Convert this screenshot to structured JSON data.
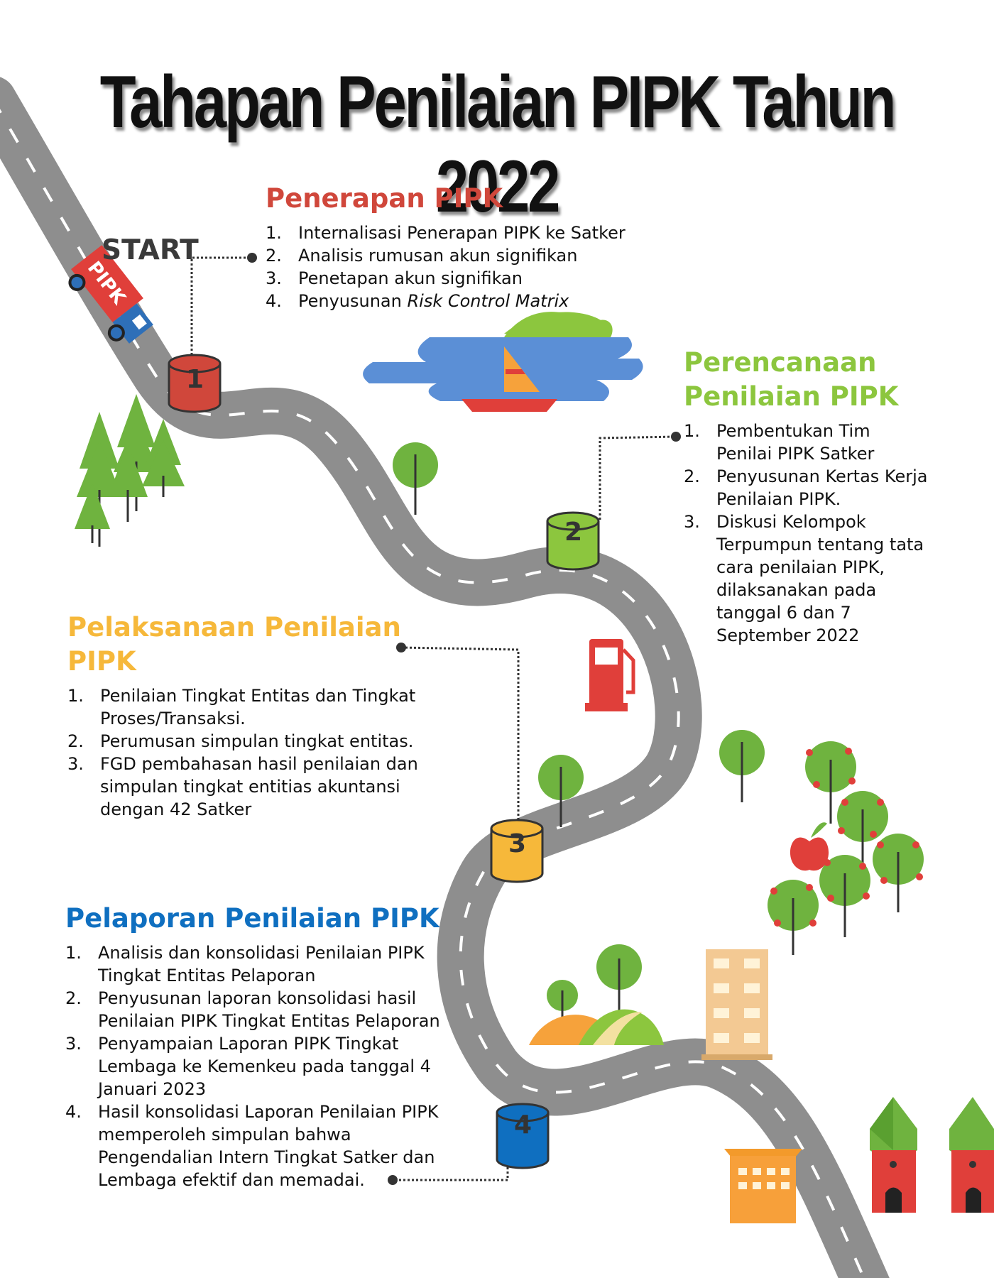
{
  "title": "Tahapan Penilaian PIPK Tahun 2022",
  "start_label": "START",
  "truck_label": "PIPK",
  "colors": {
    "stage1": "#d0473b",
    "stage2": "#8cc63e",
    "stage3": "#f6b83a",
    "stage4": "#0f6fc0",
    "road": "#8e8e8e"
  },
  "markers": [
    "1",
    "2",
    "3",
    "4"
  ],
  "stages": [
    {
      "title": "Penerapan PIPK",
      "items": [
        {
          "num": "1.",
          "text": "Internalisasi Penerapan PIPK ke Satker"
        },
        {
          "num": "2.",
          "text": "Analisis rumusan akun signifikan"
        },
        {
          "num": "3.",
          "text": "Penetapan akun signifikan"
        },
        {
          "num": "4.",
          "text_prefix": "Penyusunan ",
          "text_italic": "Risk Control Matrix"
        }
      ]
    },
    {
      "title_line1": "Perencanaan",
      "title_line2": "Penilaian PIPK",
      "items": [
        {
          "num": "1.",
          "lines": [
            "Pembentukan Tim",
            "Penilai PIPK  Satker"
          ]
        },
        {
          "num": "2.",
          "lines": [
            "Penyusunan Kertas Kerja",
            "Penilaian PIPK."
          ]
        },
        {
          "num": "3.",
          "lines": [
            "Diskusi Kelompok",
            "Terpumpun tentang tata",
            "cara penilaian PIPK,",
            "dilaksanakan pada",
            "tanggal 6 dan 7",
            "September 2022"
          ]
        }
      ]
    },
    {
      "title_line1": "Pelaksanaan Penilaian",
      "title_line2": "PIPK",
      "items": [
        {
          "num": "1.",
          "lines": [
            "Penilaian Tingkat Entitas dan Tingkat",
            "Proses/Transaksi."
          ]
        },
        {
          "num": "2.",
          "lines": [
            "Perumusan simpulan tingkat entitas."
          ]
        },
        {
          "num": "3.",
          "lines": [
            "FGD pembahasan hasil penilaian dan",
            "simpulan tingkat entitias akuntansi",
            "dengan 42 Satker"
          ]
        }
      ]
    },
    {
      "title": "Pelaporan Penilaian PIPK",
      "items": [
        {
          "num": "1.",
          "lines": [
            "Analisis dan konsolidasi Penilaian PIPK",
            "Tingkat Entitas Pelaporan"
          ]
        },
        {
          "num": "2.",
          "lines": [
            "Penyusunan laporan konsolidasi hasil",
            "Penilaian PIPK Tingkat Entitas Pelaporan"
          ]
        },
        {
          "num": "3.",
          "lines": [
            "Penyampaian Laporan PIPK Tingkat",
            "Lembaga ke Kemenkeu pada tanggal 4",
            "Januari 2023"
          ]
        },
        {
          "num": "4.",
          "lines": [
            "Hasil konsolidasi Laporan Penilaian PIPK",
            "memperoleh simpulan bahwa",
            "Pengendalian Intern Tingkat Satker dan",
            "Lembaga efektif dan memadai."
          ]
        }
      ]
    }
  ]
}
